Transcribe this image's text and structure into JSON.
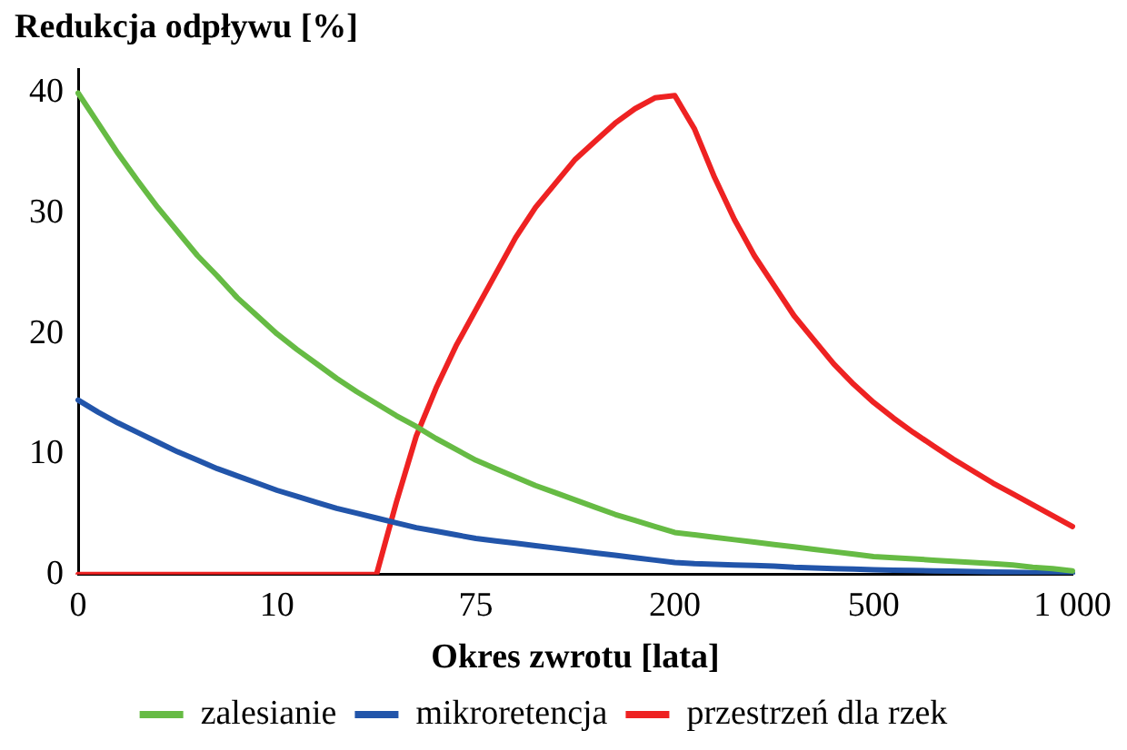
{
  "chart_data": {
    "type": "line",
    "ylabel": "Redukcja odpływu [%]",
    "xlabel": "Okres zwrotu [lata]",
    "categories": [
      "0",
      null,
      null,
      null,
      null,
      null,
      null,
      null,
      null,
      null,
      "10",
      null,
      null,
      null,
      null,
      null,
      null,
      null,
      null,
      null,
      "75",
      null,
      null,
      null,
      null,
      null,
      null,
      null,
      null,
      null,
      "200",
      null,
      null,
      null,
      null,
      null,
      null,
      null,
      null,
      null,
      "500",
      null,
      null,
      null,
      null,
      null,
      null,
      null,
      null,
      null,
      "1 000"
    ],
    "series": [
      {
        "name": "zalesianie",
        "color": "#66bb44",
        "values": [
          40,
          37.5,
          35,
          32.7,
          30.5,
          28.5,
          26.5,
          24.8,
          23,
          21.5,
          20,
          18.7,
          17.5,
          16.3,
          15.2,
          14.2,
          13.2,
          12.3,
          11.3,
          10.4,
          9.5,
          8.8,
          8.1,
          7.4,
          6.8,
          6.2,
          5.6,
          5,
          4.5,
          4,
          3.5,
          3.3,
          3.1,
          2.9,
          2.7,
          2.5,
          2.3,
          2.1,
          1.9,
          1.7,
          1.5,
          1.4,
          1.3,
          1.2,
          1.1,
          1,
          0.9,
          0.8,
          0.6,
          0.5,
          0.3
        ]
      },
      {
        "name": "mikroretencja",
        "color": "#2255aa",
        "values": [
          14.5,
          13.5,
          12.6,
          11.8,
          11,
          10.2,
          9.5,
          8.8,
          8.2,
          7.6,
          7,
          6.5,
          6,
          5.5,
          5.1,
          4.7,
          4.3,
          3.9,
          3.6,
          3.3,
          3,
          2.8,
          2.6,
          2.4,
          2.2,
          2,
          1.8,
          1.6,
          1.4,
          1.2,
          1,
          0.9,
          0.85,
          0.8,
          0.75,
          0.7,
          0.6,
          0.55,
          0.5,
          0.45,
          0.4,
          0.37,
          0.34,
          0.31,
          0.28,
          0.25,
          0.22,
          0.19,
          0.16,
          0.13,
          0.1
        ]
      },
      {
        "name": "przestrzeń dla rzek",
        "color": "#ee2222",
        "values": [
          0,
          0,
          0,
          0,
          0,
          0,
          0,
          0,
          0,
          0,
          0,
          0,
          0,
          0,
          0,
          0,
          6,
          11.5,
          15.5,
          19,
          22,
          25,
          28,
          30.5,
          32.5,
          34.5,
          36,
          37.5,
          38.7,
          39.6,
          39.8,
          37,
          33,
          29.5,
          26.5,
          24,
          21.5,
          19.5,
          17.5,
          15.8,
          14.3,
          13,
          11.8,
          10.7,
          9.6,
          8.6,
          7.6,
          6.7,
          5.8,
          4.9,
          4
        ]
      }
    ],
    "ylim": [
      0,
      42
    ],
    "yticks": [
      0,
      10,
      20,
      30,
      40
    ],
    "grid": false,
    "legend": "bottom",
    "marker": "none",
    "line_style": "solid"
  }
}
